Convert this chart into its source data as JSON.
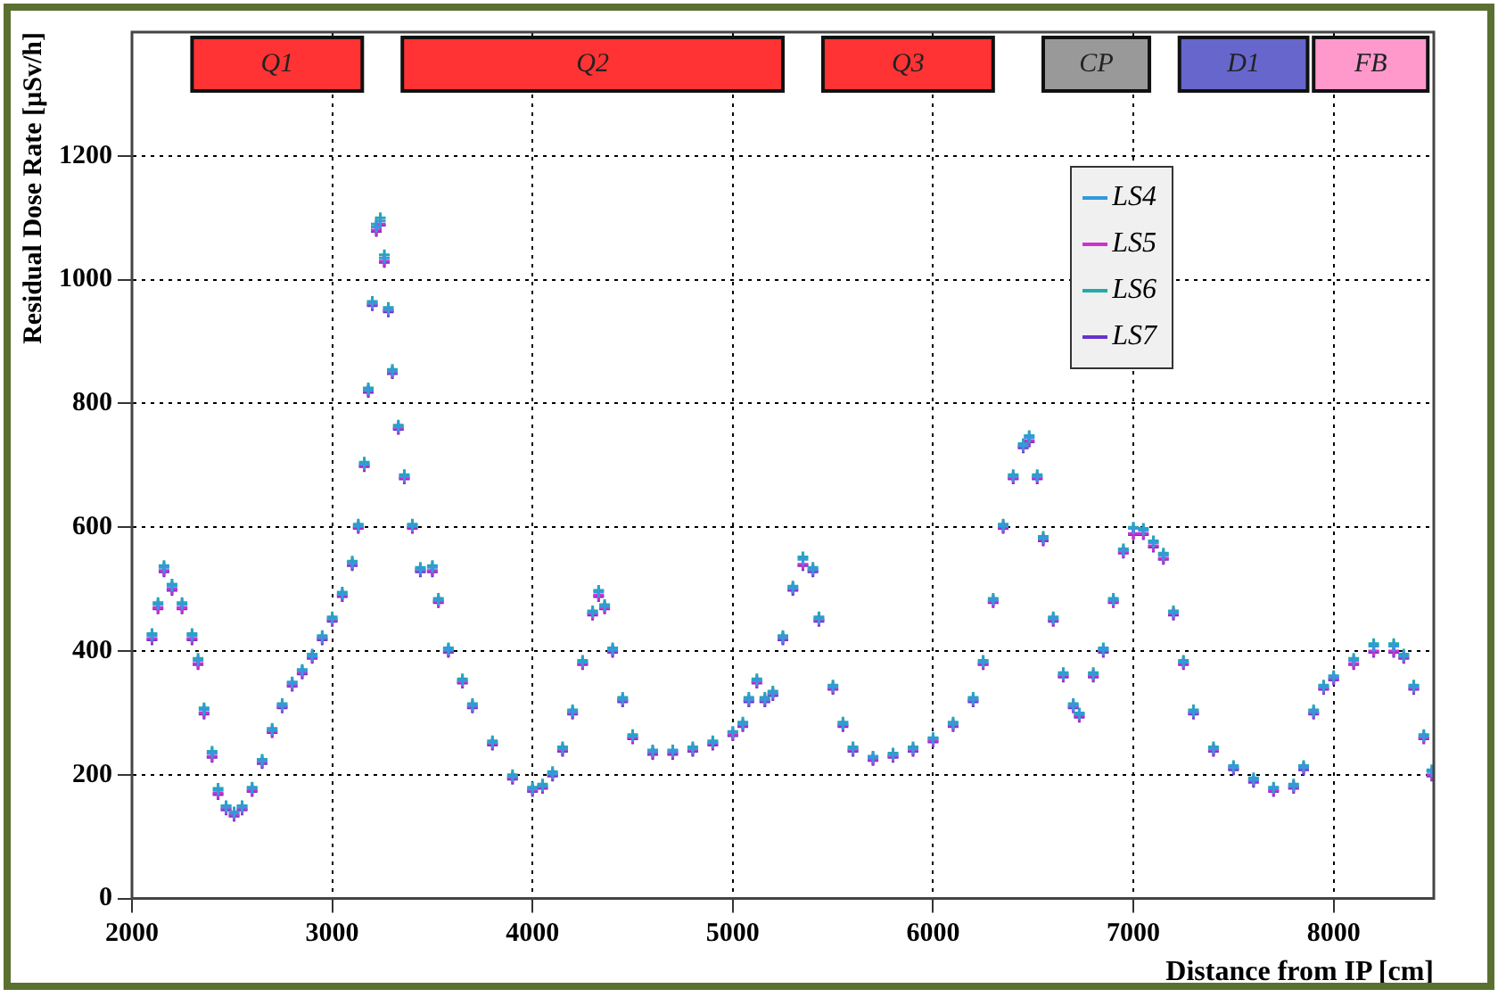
{
  "chart_data": {
    "type": "scatter",
    "xlabel": "Distance from IP [cm]",
    "ylabel": "Residual Dose Rate [µSv/h]",
    "x": [
      2100,
      2130,
      2160,
      2200,
      2250,
      2300,
      2330,
      2360,
      2400,
      2430,
      2470,
      2510,
      2550,
      2600,
      2650,
      2700,
      2750,
      2800,
      2850,
      2900,
      2950,
      3000,
      3050,
      3100,
      3130,
      3160,
      3180,
      3200,
      3220,
      3240,
      3260,
      3280,
      3300,
      3330,
      3360,
      3400,
      3440,
      3500,
      3530,
      3580,
      3650,
      3700,
      3800,
      3900,
      4000,
      4050,
      4100,
      4150,
      4200,
      4250,
      4300,
      4330,
      4360,
      4400,
      4450,
      4500,
      4600,
      4700,
      4800,
      4900,
      5000,
      5050,
      5080,
      5120,
      5160,
      5200,
      5250,
      5300,
      5350,
      5400,
      5430,
      5500,
      5550,
      5600,
      5700,
      5800,
      5900,
      6000,
      6100,
      6200,
      6250,
      6300,
      6350,
      6400,
      6450,
      6480,
      6520,
      6550,
      6600,
      6650,
      6700,
      6730,
      6800,
      6850,
      6900,
      6950,
      7000,
      7050,
      7100,
      7150,
      7200,
      7250,
      7300,
      7400,
      7500,
      7600,
      7700,
      7800,
      7850,
      7900,
      7950,
      8000,
      8100,
      8200,
      8300,
      8350,
      8400,
      8450,
      8490
    ],
    "series": [
      {
        "name": "LS4",
        "color": "#3399dd",
        "values": [
          425,
          475,
          535,
          505,
          475,
          425,
          385,
          305,
          235,
          175,
          148,
          138,
          148,
          178,
          222,
          272,
          312,
          348,
          368,
          392,
          422,
          452,
          492,
          542,
          602,
          702,
          822,
          962,
          1085,
          1095,
          1035,
          952,
          852,
          762,
          682,
          602,
          532,
          535,
          482,
          402,
          352,
          312,
          252,
          197,
          177,
          182,
          202,
          242,
          302,
          382,
          462,
          495,
          472,
          402,
          322,
          262,
          238,
          238,
          242,
          252,
          268,
          282,
          322,
          352,
          322,
          332,
          422,
          502,
          548,
          532,
          452,
          342,
          282,
          242,
          228,
          232,
          242,
          258,
          282,
          322,
          382,
          482,
          602,
          682,
          732,
          745,
          682,
          582,
          452,
          362,
          312,
          298,
          362,
          402,
          482,
          562,
          598,
          595,
          575,
          555,
          462,
          382,
          302,
          242,
          212,
          192,
          178,
          182,
          212,
          302,
          342,
          358,
          385,
          408,
          408,
          392,
          342,
          262,
          205
        ]
      },
      {
        "name": "LS5",
        "color": "#cc33cc",
        "values": [
          420,
          470,
          530,
          500,
          470,
          420,
          380,
          300,
          230,
          170,
          145,
          135,
          145,
          175,
          220,
          270,
          310,
          345,
          365,
          390,
          420,
          450,
          490,
          540,
          600,
          700,
          820,
          960,
          1080,
          1090,
          1030,
          950,
          850,
          760,
          680,
          600,
          530,
          530,
          480,
          400,
          350,
          310,
          250,
          195,
          175,
          180,
          200,
          240,
          300,
          380,
          460,
          490,
          470,
          400,
          320,
          260,
          235,
          235,
          240,
          250,
          265,
          280,
          320,
          350,
          320,
          330,
          420,
          500,
          540,
          530,
          450,
          340,
          280,
          240,
          225,
          230,
          240,
          255,
          280,
          320,
          380,
          480,
          600,
          680,
          730,
          740,
          680,
          580,
          450,
          360,
          310,
          295,
          360,
          400,
          480,
          560,
          590,
          590,
          570,
          550,
          460,
          380,
          300,
          240,
          210,
          190,
          175,
          180,
          210,
          300,
          340,
          355,
          380,
          400,
          400,
          390,
          340,
          260,
          200
        ]
      },
      {
        "name": "LS6",
        "color": "#22aaaa",
        "values": [
          428,
          478,
          538,
          508,
          478,
          428,
          388,
          308,
          238,
          178,
          150,
          140,
          150,
          180,
          225,
          275,
          315,
          350,
          370,
          395,
          425,
          455,
          495,
          545,
          605,
          705,
          825,
          965,
          1090,
          1100,
          1040,
          955,
          855,
          765,
          685,
          605,
          535,
          538,
          485,
          405,
          355,
          315,
          255,
          200,
          180,
          185,
          205,
          245,
          305,
          385,
          465,
          498,
          475,
          405,
          325,
          265,
          240,
          240,
          245,
          255,
          270,
          285,
          325,
          355,
          325,
          335,
          425,
          505,
          552,
          535,
          455,
          345,
          285,
          245,
          230,
          235,
          245,
          260,
          285,
          325,
          385,
          485,
          605,
          685,
          735,
          748,
          685,
          585,
          455,
          365,
          315,
          300,
          365,
          405,
          485,
          565,
          600,
          598,
          578,
          558,
          465,
          385,
          305,
          245,
          215,
          195,
          180,
          185,
          215,
          305,
          345,
          360,
          388,
          412,
          412,
          395,
          345,
          265,
          208
        ]
      },
      {
        "name": "LS7",
        "color": "#6633cc",
        "values": [
          418,
          468,
          528,
          498,
          468,
          418,
          378,
          298,
          228,
          168,
          143,
          133,
          143,
          173,
          218,
          268,
          308,
          343,
          363,
          388,
          418,
          448,
          488,
          538,
          598,
          698,
          818,
          958,
          1078,
          1088,
          1028,
          948,
          848,
          758,
          678,
          598,
          528,
          528,
          478,
          398,
          348,
          308,
          248,
          193,
          173,
          178,
          198,
          238,
          298,
          378,
          458,
          488,
          468,
          398,
          318,
          258,
          233,
          233,
          238,
          248,
          263,
          278,
          318,
          348,
          318,
          328,
          418,
          498,
          538,
          528,
          448,
          338,
          278,
          238,
          223,
          228,
          238,
          253,
          278,
          318,
          378,
          478,
          598,
          678,
          728,
          738,
          678,
          578,
          448,
          358,
          308,
          293,
          358,
          398,
          478,
          558,
          588,
          588,
          568,
          548,
          458,
          378,
          298,
          238,
          208,
          188,
          173,
          178,
          208,
          298,
          338,
          353,
          378,
          398,
          398,
          388,
          338,
          258,
          198
        ]
      }
    ],
    "xlim": [
      2000,
      8500
    ],
    "xticks": [
      2000,
      3000,
      4000,
      5000,
      6000,
      7000,
      8000
    ],
    "ylim": [
      0,
      1400
    ],
    "yticks": [
      0,
      200,
      400,
      600,
      800,
      1000,
      1200
    ],
    "bands": [
      {
        "axis": "x",
        "from": 2300,
        "to": 3150,
        "label": "Q1",
        "color": "#ff3333"
      },
      {
        "axis": "x",
        "from": 3350,
        "to": 5250,
        "label": "Q2",
        "color": "#ff3333"
      },
      {
        "axis": "x",
        "from": 5450,
        "to": 6300,
        "label": "Q3",
        "color": "#ff3333"
      },
      {
        "axis": "x",
        "from": 6550,
        "to": 7080,
        "label": "CP",
        "color": "#999999"
      },
      {
        "axis": "x",
        "from": 7230,
        "to": 7870,
        "label": "D1",
        "color": "#6666cc"
      },
      {
        "axis": "x",
        "from": 7900,
        "to": 8470,
        "label": "FB",
        "color": "#ff99cc"
      }
    ],
    "grid": true,
    "legend": "top right",
    "marker": "cross"
  }
}
